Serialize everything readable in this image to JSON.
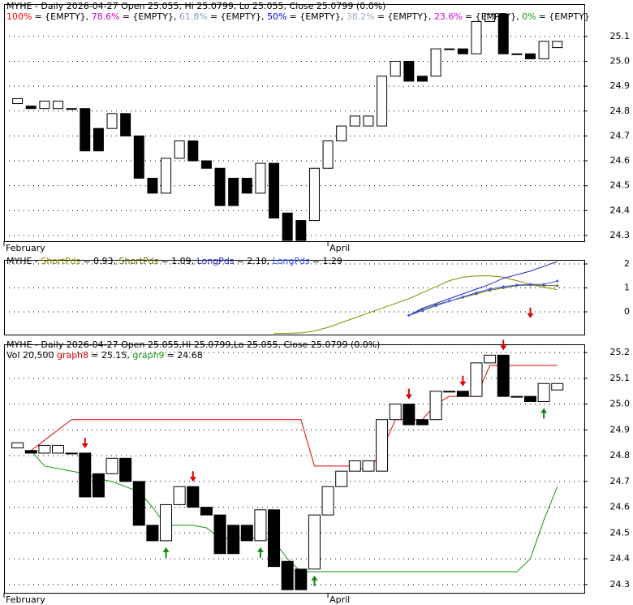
{
  "chart_data": [
    {
      "type": "candlestick",
      "title": "MYHE - Daily 2026-04-27 Open 25.055, Hi 25.0799, Lo 25.055, Close 25.0799 (0.0%)",
      "fib_levels": [
        {
          "name": "100%",
          "color": "#ff0000",
          "text": "= {EMPTY},"
        },
        {
          "name": "78.6%",
          "color": "#cc00cc",
          "text": "= {EMPTY},"
        },
        {
          "name": "61.8%",
          "color": "#8899cc",
          "text": "= {EMPTY},"
        },
        {
          "name": "50%",
          "color": "#0000ff",
          "text": "= {EMPTY},"
        },
        {
          "name": "38.2%",
          "color": "#99aacc",
          "text": "= {EMPTY},"
        },
        {
          "name": "23.6%",
          "color": "#dd00dd",
          "text": "= {EMPTY},"
        },
        {
          "name": "0%",
          "color": "#00aa00",
          "text": "= {EMPTY}"
        }
      ],
      "open": [
        24.83,
        24.82,
        24.81,
        24.81,
        24.81,
        24.81,
        24.73,
        24.73,
        24.79,
        24.7,
        24.53,
        24.47,
        24.61,
        24.68,
        24.6,
        24.57,
        24.53,
        24.53,
        24.47,
        24.59,
        24.39,
        24.36,
        24.36,
        24.57,
        24.68,
        24.74,
        24.74,
        24.74,
        24.94,
        25.0,
        24.94,
        24.94,
        25.05,
        25.05,
        25.03,
        25.16,
        25.19,
        25.03,
        25.03,
        25.01,
        25.055
      ],
      "close": [
        24.85,
        24.81,
        24.84,
        24.84,
        24.81,
        24.64,
        24.64,
        24.79,
        24.7,
        24.53,
        24.47,
        24.61,
        24.68,
        24.6,
        24.57,
        24.42,
        24.42,
        24.47,
        24.59,
        24.37,
        24.28,
        24.28,
        24.57,
        24.68,
        24.74,
        24.78,
        24.78,
        24.94,
        25.0,
        24.92,
        24.92,
        25.05,
        25.05,
        25.03,
        25.16,
        25.19,
        25.03,
        25.03,
        25.01,
        25.08,
        25.0799
      ],
      "xlim": [
        -1,
        42
      ],
      "xticks": [
        {
          "value": -1,
          "label": "February"
        },
        {
          "value": 23,
          "label": "April"
        }
      ],
      "ylim": [
        24.277,
        25.23
      ],
      "yticks": [
        24.3,
        24.4,
        24.5,
        24.6,
        24.7,
        24.8,
        24.9,
        {
          "value": 25,
          "label": "25.0"
        },
        25.1
      ],
      "grid": true
    },
    {
      "type": "line",
      "legend_prefix": "MYHE -",
      "series": [
        {
          "name": "ShortPds",
          "color": "#8a8a00",
          "legend": "= 0.93,",
          "values": [
            null,
            null,
            null,
            null,
            null,
            null,
            null,
            null,
            null,
            null,
            null,
            null,
            null,
            null,
            null,
            null,
            null,
            null,
            null,
            -0.9,
            -0.9,
            -0.88,
            -0.8,
            -0.65,
            -0.45,
            -0.25,
            -0.05,
            0.15,
            0.35,
            0.55,
            0.8,
            1.05,
            1.3,
            1.45,
            1.5,
            1.5,
            1.45,
            1.3,
            1.15,
            1.02,
            0.93
          ]
        },
        {
          "name": "ShortPds",
          "color": "#666600",
          "legend": "= 1.09,",
          "values": [
            null,
            null,
            null,
            null,
            null,
            null,
            null,
            null,
            null,
            null,
            null,
            null,
            null,
            null,
            null,
            null,
            null,
            null,
            null,
            null,
            null,
            null,
            null,
            null,
            null,
            null,
            null,
            null,
            null,
            -0.15,
            0.1,
            0.3,
            0.45,
            0.6,
            0.75,
            0.9,
            1.0,
            1.1,
            1.12,
            1.1,
            1.09
          ]
        },
        {
          "name": "LongPds",
          "color": "#2222cc",
          "legend": "= 2.10,",
          "values": [
            null,
            null,
            null,
            null,
            null,
            null,
            null,
            null,
            null,
            null,
            null,
            null,
            null,
            null,
            null,
            null,
            null,
            null,
            null,
            null,
            null,
            null,
            null,
            null,
            null,
            null,
            null,
            null,
            null,
            -0.15,
            0.15,
            0.35,
            0.55,
            0.75,
            0.95,
            1.15,
            1.4,
            1.55,
            1.7,
            1.9,
            2.1
          ]
        },
        {
          "name": "LongPds",
          "color": "#3355ff",
          "legend": "= 1.29",
          "values": [
            null,
            null,
            null,
            null,
            null,
            null,
            null,
            null,
            null,
            null,
            null,
            null,
            null,
            null,
            null,
            null,
            null,
            null,
            null,
            null,
            null,
            null,
            null,
            null,
            null,
            null,
            null,
            null,
            null,
            -0.15,
            0.05,
            0.25,
            0.45,
            0.62,
            0.8,
            0.95,
            1.05,
            1.12,
            1.15,
            1.15,
            1.29
          ]
        }
      ],
      "sell_signals": [
        38
      ],
      "xlim": [
        -1,
        42
      ],
      "ylim": [
        -0.95,
        2.17
      ],
      "yticks": [
        0,
        1,
        2
      ],
      "grid": true
    },
    {
      "type": "candlestick",
      "title": "MYHE - Daily 2026-04-27 Open 25.055,Hi 25.0799,Lo 25.055, Close 25.0799 (0.0%)",
      "volume_label": "Vol 20,500",
      "series": [
        {
          "name": "graph8",
          "color": "#dd0000",
          "legend": "= 25.15,",
          "values": [
            null,
            24.82,
            24.86,
            24.9,
            24.94,
            24.94,
            24.94,
            24.94,
            24.94,
            24.94,
            24.94,
            24.94,
            24.94,
            24.94,
            24.94,
            24.94,
            24.94,
            24.94,
            24.94,
            24.94,
            24.94,
            24.94,
            24.76,
            24.76,
            24.76,
            24.76,
            24.74,
            24.82,
            24.94,
            24.94,
            24.94,
            25.0,
            25.03,
            25.03,
            25.03,
            25.15,
            25.15,
            25.15,
            25.15,
            25.15,
            25.15
          ]
        },
        {
          "name": "graph9",
          "color": "#119911",
          "legend": "= 24.68",
          "values": [
            null,
            24.82,
            24.76,
            24.75,
            24.74,
            24.73,
            24.71,
            24.7,
            24.68,
            24.66,
            24.6,
            24.53,
            24.53,
            24.53,
            24.52,
            24.48,
            24.48,
            24.48,
            24.48,
            24.47,
            24.4,
            24.35,
            24.35,
            24.35,
            24.35,
            24.35,
            24.35,
            24.35,
            24.35,
            24.35,
            24.35,
            24.35,
            24.35,
            24.35,
            24.35,
            24.35,
            24.35,
            24.35,
            24.4,
            24.55,
            24.68
          ]
        }
      ],
      "open": [
        24.83,
        24.82,
        24.81,
        24.81,
        24.81,
        24.81,
        24.73,
        24.73,
        24.79,
        24.7,
        24.53,
        24.47,
        24.61,
        24.68,
        24.6,
        24.57,
        24.53,
        24.53,
        24.47,
        24.59,
        24.39,
        24.36,
        24.36,
        24.57,
        24.68,
        24.74,
        24.74,
        24.74,
        24.94,
        25.0,
        24.94,
        24.94,
        25.05,
        25.05,
        25.03,
        25.16,
        25.19,
        25.03,
        25.03,
        25.01,
        25.055
      ],
      "close": [
        24.85,
        24.81,
        24.84,
        24.84,
        24.81,
        24.64,
        24.64,
        24.79,
        24.7,
        24.53,
        24.47,
        24.61,
        24.68,
        24.6,
        24.57,
        24.42,
        24.42,
        24.47,
        24.59,
        24.37,
        24.28,
        24.28,
        24.57,
        24.68,
        24.74,
        24.78,
        24.78,
        24.94,
        25.0,
        24.92,
        24.92,
        25.05,
        25.05,
        25.03,
        25.16,
        25.19,
        25.03,
        25.03,
        25.01,
        25.08,
        25.0799
      ],
      "sell_signals": [
        5,
        13,
        29,
        33,
        36
      ],
      "buy_signals": [
        11,
        18,
        22,
        39
      ],
      "xlim": [
        -1,
        42
      ],
      "xticks": [
        {
          "value": -1,
          "label": "February"
        },
        {
          "value": 23,
          "label": "April"
        }
      ],
      "ylim": [
        24.268,
        25.232
      ],
      "yticks": [
        24.3,
        24.4,
        24.5,
        24.6,
        24.7,
        24.8,
        24.9,
        {
          "value": 25,
          "label": "25.0"
        },
        25.1,
        25.2
      ],
      "grid": true
    }
  ]
}
